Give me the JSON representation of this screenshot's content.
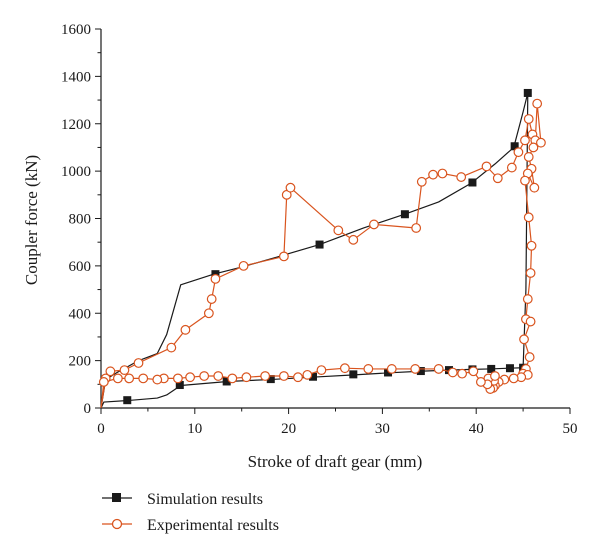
{
  "chart_data": {
    "type": "line",
    "title": "",
    "xlabel": "Stroke of draft gear (mm)",
    "ylabel": "Coupler force (kN)",
    "xlim": [
      0,
      50
    ],
    "ylim": [
      0,
      1600
    ],
    "xticks": [
      0,
      10,
      20,
      30,
      40,
      50
    ],
    "yticks": [
      0,
      200,
      400,
      600,
      800,
      1000,
      1200,
      1400,
      1600
    ],
    "grid": false,
    "legend_position": "bottom-left",
    "series": [
      {
        "name": "Simulation results",
        "color": "#1a1a1a",
        "marker": "filled-square",
        "curve": [
          [
            0,
            0
          ],
          [
            0.3,
            25
          ],
          [
            3,
            32
          ],
          [
            6,
            42
          ],
          [
            7,
            55
          ],
          [
            8.5,
            95
          ],
          [
            13.5,
            112
          ],
          [
            18,
            120
          ],
          [
            22.5,
            130
          ],
          [
            27,
            140
          ],
          [
            30.5,
            148
          ],
          [
            34,
            155
          ],
          [
            37,
            160
          ],
          [
            39.5,
            163
          ],
          [
            41.5,
            165
          ],
          [
            43.5,
            168
          ],
          [
            45,
            170
          ],
          [
            45.3,
            500
          ],
          [
            45.5,
            1330
          ],
          [
            45,
            1250
          ],
          [
            44,
            1100
          ],
          [
            42,
            1030
          ],
          [
            39.5,
            950
          ],
          [
            36,
            870
          ],
          [
            32.5,
            820
          ],
          [
            28,
            760
          ],
          [
            23.3,
            690
          ],
          [
            19,
            640
          ],
          [
            15,
            595
          ],
          [
            12,
            565
          ],
          [
            8.5,
            520
          ],
          [
            7,
            310
          ],
          [
            6,
            230
          ],
          [
            4,
            200
          ],
          [
            1.5,
            145
          ],
          [
            0.5,
            120
          ],
          [
            0,
            0
          ]
        ],
        "markers": [
          [
            2.8,
            33
          ],
          [
            8.4,
            97
          ],
          [
            13.4,
            112
          ],
          [
            18.1,
            122
          ],
          [
            22.6,
            132
          ],
          [
            26.9,
            142
          ],
          [
            30.6,
            150
          ],
          [
            34.1,
            156
          ],
          [
            37.1,
            160
          ],
          [
            39.6,
            163
          ],
          [
            41.6,
            165
          ],
          [
            43.6,
            168
          ],
          [
            45,
            170
          ],
          [
            45.5,
            1330
          ],
          [
            44.1,
            1105
          ],
          [
            39.6,
            952
          ],
          [
            32.4,
            818
          ],
          [
            23.3,
            690
          ],
          [
            12.2,
            565
          ]
        ]
      },
      {
        "name": "Experimental results",
        "color": "#d9541e",
        "marker": "open-circle",
        "points": [
          [
            0,
            0
          ],
          [
            0.5,
            125
          ],
          [
            1,
            155
          ],
          [
            2.5,
            160
          ],
          [
            4,
            190
          ],
          [
            7.5,
            255
          ],
          [
            9,
            330
          ],
          [
            11.5,
            400
          ],
          [
            11.8,
            460
          ],
          [
            12.2,
            545
          ],
          [
            15.2,
            600
          ],
          [
            19.5,
            640
          ],
          [
            19.8,
            900
          ],
          [
            20.2,
            930
          ],
          [
            25.3,
            750
          ],
          [
            26.9,
            710
          ],
          [
            29.1,
            775
          ],
          [
            33.6,
            760
          ],
          [
            34.2,
            955
          ],
          [
            35.4,
            985
          ],
          [
            36.4,
            990
          ],
          [
            38.4,
            975
          ],
          [
            41.1,
            1020
          ],
          [
            42.3,
            970
          ],
          [
            43.8,
            1015
          ],
          [
            44.5,
            1080
          ],
          [
            45.2,
            1130
          ],
          [
            45.6,
            1220
          ],
          [
            46,
            1155
          ],
          [
            46.3,
            1130
          ],
          [
            46.5,
            1285
          ],
          [
            46.9,
            1120
          ],
          [
            46.1,
            1100
          ],
          [
            45.6,
            1060
          ],
          [
            45.9,
            1010
          ],
          [
            46.2,
            930
          ],
          [
            45.5,
            990
          ],
          [
            45.2,
            960
          ],
          [
            45.6,
            805
          ],
          [
            45.9,
            685
          ],
          [
            45.8,
            570
          ],
          [
            45.5,
            460
          ],
          [
            45.3,
            375
          ],
          [
            45.8,
            365
          ],
          [
            45.1,
            290
          ],
          [
            45.7,
            215
          ],
          [
            45.3,
            165
          ],
          [
            45,
            145
          ],
          [
            45.5,
            140
          ],
          [
            44.8,
            130
          ],
          [
            44,
            125
          ],
          [
            43,
            120
          ],
          [
            42.4,
            110
          ],
          [
            42,
            95
          ],
          [
            41.8,
            85
          ],
          [
            41.5,
            80
          ],
          [
            41.9,
            115
          ],
          [
            41.3,
            125
          ],
          [
            42,
            135
          ],
          [
            41.2,
            100
          ],
          [
            40.5,
            110
          ],
          [
            39.7,
            155
          ],
          [
            38.5,
            145
          ],
          [
            37.5,
            150
          ],
          [
            36,
            165
          ],
          [
            33.5,
            165
          ],
          [
            31,
            165
          ],
          [
            28.5,
            165
          ],
          [
            26,
            168
          ],
          [
            23.5,
            160
          ],
          [
            22,
            140
          ],
          [
            21,
            130
          ],
          [
            19.5,
            135
          ],
          [
            17.5,
            135
          ],
          [
            15.5,
            130
          ],
          [
            14,
            125
          ],
          [
            12.5,
            135
          ],
          [
            11,
            135
          ],
          [
            9.5,
            130
          ],
          [
            8.2,
            125
          ],
          [
            6.7,
            125
          ],
          [
            6,
            120
          ],
          [
            4.5,
            125
          ],
          [
            3,
            125
          ],
          [
            1.8,
            125
          ],
          [
            0.3,
            110
          ],
          [
            0,
            0
          ]
        ]
      }
    ]
  }
}
